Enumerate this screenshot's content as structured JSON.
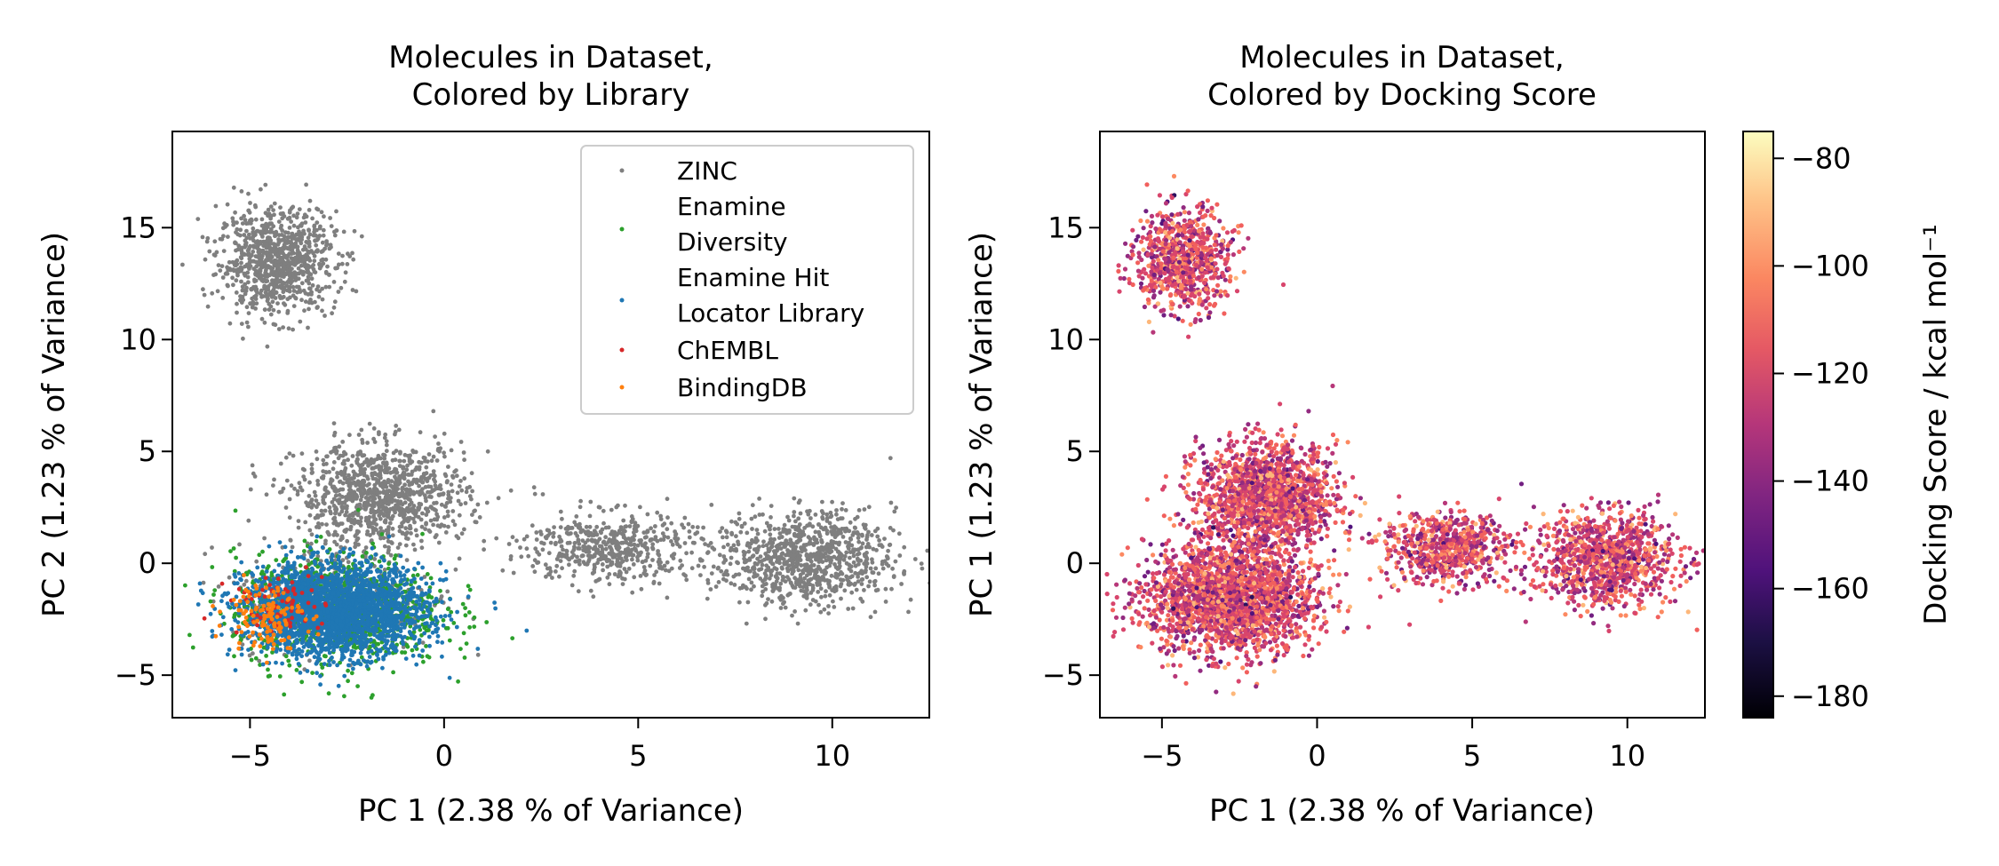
{
  "colors": {
    "ZINC": "#7f7f7f",
    "Enamine Diversity": "#2ca02c",
    "Enamine Hit Locator Library": "#1f77b4",
    "ChEMBL": "#d62728",
    "BindingDB": "#ff7f0e"
  },
  "chart_data": [
    {
      "type": "scatter",
      "title": "Molecules in Dataset,\nColored by Library",
      "xlabel": "PC 1 (2.38 % of Variance)",
      "ylabel": "PC 2 (1.23 % of Variance)",
      "xlim": [
        -7,
        12.5
      ],
      "ylim": [
        -6.9,
        19.3
      ],
      "xticks": [
        -5,
        0,
        5,
        10
      ],
      "yticks": [
        -5,
        0,
        5,
        10,
        15
      ],
      "grid": false,
      "legend_position": "top-right",
      "series": [
        {
          "name": "ZINC",
          "clusters": [
            {
              "cx": -4.3,
              "cy": 13.5,
              "sx": 0.75,
              "sy": 1.15
            },
            {
              "cx": -1.6,
              "cy": 3.0,
              "sx": 1.1,
              "sy": 1.15
            },
            {
              "cx": 4.2,
              "cy": 0.7,
              "sx": 1.05,
              "sy": 0.8
            },
            {
              "cx": 9.3,
              "cy": 0.2,
              "sx": 1.15,
              "sy": 1.05
            },
            {
              "cx": -2.8,
              "cy": -1.5,
              "sx": 1.3,
              "sy": 1.2
            }
          ]
        },
        {
          "name": "Enamine\nDiversity",
          "clusters": [
            {
              "cx": -2.7,
              "cy": -2.1,
              "sx": 1.35,
              "sy": 1.25
            }
          ]
        },
        {
          "name": "Enamine Hit\nLocator Library",
          "clusters": [
            {
              "cx": -2.8,
              "cy": -2.1,
              "sx": 1.15,
              "sy": 1.0
            }
          ]
        },
        {
          "name": "ChEMBL",
          "clusters": [
            {
              "cx": -4.3,
              "cy": -1.8,
              "sx": 0.6,
              "sy": 0.7
            }
          ]
        },
        {
          "name": "BindingDB",
          "clusters": [
            {
              "cx": -4.6,
              "cy": -2.3,
              "sx": 0.5,
              "sy": 0.75
            }
          ]
        }
      ]
    },
    {
      "type": "scatter",
      "title": "Molecules in Dataset,\nColored by Docking Score",
      "xlabel": "PC 1 (2.38 % of Variance)",
      "ylabel": "PC 1 (1.23 % of Variance)",
      "xlim": [
        -7,
        12.5
      ],
      "ylim": [
        -6.9,
        19.3
      ],
      "xticks": [
        -5,
        0,
        5,
        10
      ],
      "yticks": [
        -5,
        0,
        5,
        10,
        15
      ],
      "grid": false,
      "colormap": "magma",
      "colorbar": {
        "label": "Docking Score / kcal mol⁻¹",
        "range": [
          -184,
          -75
        ],
        "ticks": [
          -80,
          -100,
          -120,
          -140,
          -160,
          -180
        ]
      },
      "series": [
        {
          "name": "",
          "clusters": [
            {
              "cx": -4.3,
              "cy": 13.5,
              "sx": 0.75,
              "sy": 1.15
            },
            {
              "cx": -1.6,
              "cy": 3.0,
              "sx": 1.1,
              "sy": 1.15
            },
            {
              "cx": 4.2,
              "cy": 0.7,
              "sx": 1.05,
              "sy": 0.8
            },
            {
              "cx": 9.3,
              "cy": 0.2,
              "sx": 1.15,
              "sy": 1.05
            },
            {
              "cx": -2.8,
              "cy": -1.6,
              "sx": 1.35,
              "sy": 1.25
            }
          ]
        }
      ]
    }
  ]
}
